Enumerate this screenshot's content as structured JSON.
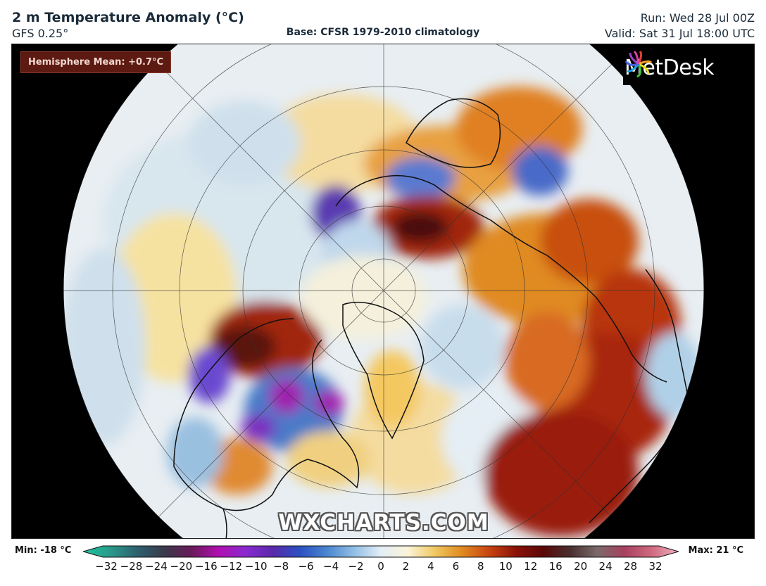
{
  "header": {
    "title": "2 m Temperature Anomaly (°C)",
    "model": "GFS 0.25°",
    "base": "Base: CFSR 1979-2010 climatology",
    "run": "Run: Wed 28 Jul 00Z",
    "valid": "Valid: Sat 31 Jul 18:00 UTC"
  },
  "map": {
    "hemisphere_mean": "Hemisphere Mean: +0.7°C",
    "logo_text": "MetDesk",
    "logo_icon": "pinwheel-logo-icon",
    "watermark": "WXCHARTS.COM",
    "projection": "north-polar-stereographic"
  },
  "colorbar": {
    "min_label": "Min: -18 °C",
    "max_label": "Max: 21 °C",
    "ticks": [
      "−32",
      "−28",
      "−24",
      "−20",
      "−16",
      "−12",
      "−10",
      "−8",
      "−6",
      "−4",
      "−2",
      "0",
      "2",
      "4",
      "6",
      "8",
      "10",
      "12",
      "16",
      "20",
      "24",
      "28",
      "32"
    ],
    "colors": [
      "#1cc6a0",
      "#2a9a8a",
      "#2e6070",
      "#3a3a4a",
      "#6a1a5a",
      "#b010b0",
      "#8a2ad0",
      "#5a2aaa",
      "#2a50c0",
      "#4a86d0",
      "#90bee4",
      "#e4eef6",
      "#faf4d8",
      "#f0c860",
      "#e08a20",
      "#c84410",
      "#8a1208",
      "#5a0808",
      "#4a3030",
      "#7a6a6a",
      "#a84060",
      "#d06a80",
      "#f0b0c0"
    ]
  }
}
